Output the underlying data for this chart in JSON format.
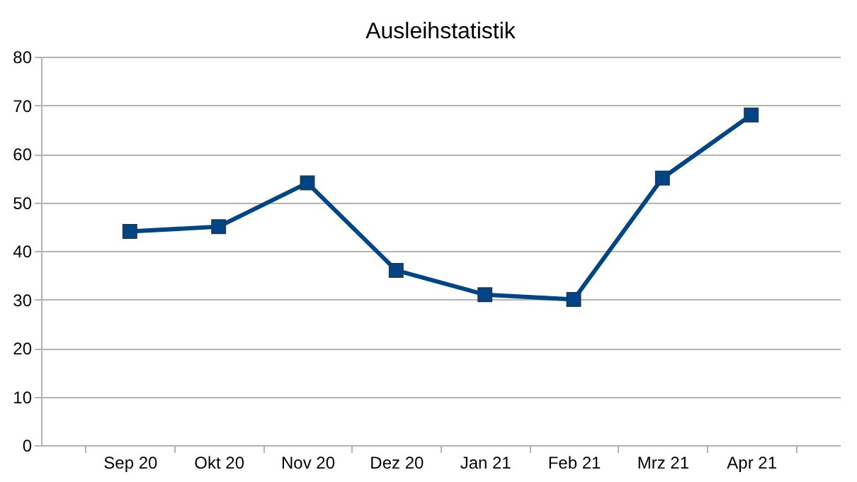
{
  "chart_data": {
    "type": "line",
    "title": "Ausleihstatistik",
    "categories": [
      "Sep 20",
      "Okt 20",
      "Nov 20",
      "Dez 20",
      "Jan 21",
      "Feb 21",
      "Mrz 21",
      "Apr 21"
    ],
    "series": [
      {
        "color": "#004586",
        "values": [
          44,
          45,
          54,
          36,
          31,
          30,
          55,
          68
        ]
      }
    ],
    "ylim": [
      0,
      80
    ],
    "yticks": [
      0,
      10,
      20,
      30,
      40,
      50,
      60,
      70,
      80
    ],
    "grid": "y",
    "marker": "square",
    "line_style": "solid"
  }
}
